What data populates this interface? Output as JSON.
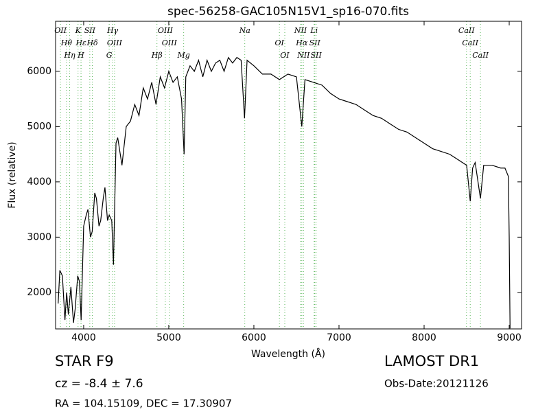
{
  "chart_data": {
    "type": "line",
    "title": "spec-56258-GAC105N15V1_sp16-070.fits",
    "x_label": "Wavelength (Å)",
    "y_label": "Flux (relative)",
    "xlim": [
      3670,
      9145
    ],
    "ylim": [
      1340,
      6905
    ],
    "xticks": [
      4000,
      5000,
      6000,
      7000,
      8000,
      9000
    ],
    "yticks": [
      2000,
      3000,
      4000,
      5000,
      6000
    ],
    "series": [
      {
        "name": "spectrum",
        "color": "#000000",
        "x": [
          3700,
          3720,
          3750,
          3780,
          3800,
          3820,
          3850,
          3880,
          3900,
          3930,
          3950,
          3970,
          4000,
          4030,
          4050,
          4080,
          4100,
          4130,
          4150,
          4180,
          4200,
          4230,
          4250,
          4280,
          4300,
          4330,
          4350,
          4380,
          4400,
          4450,
          4500,
          4550,
          4600,
          4650,
          4700,
          4750,
          4800,
          4850,
          4900,
          4950,
          5000,
          5050,
          5100,
          5150,
          5180,
          5200,
          5250,
          5300,
          5350,
          5400,
          5450,
          5500,
          5550,
          5600,
          5650,
          5700,
          5750,
          5800,
          5850,
          5890,
          5920,
          6000,
          6100,
          6200,
          6300,
          6400,
          6500,
          6563,
          6600,
          6700,
          6800,
          6900,
          7000,
          7100,
          7200,
          7300,
          7400,
          7500,
          7600,
          7700,
          7800,
          7900,
          8000,
          8100,
          8200,
          8300,
          8400,
          8500,
          8542,
          8570,
          8600,
          8662,
          8700,
          8800,
          8900,
          8950,
          8990,
          9000,
          9010
        ],
        "values": [
          1800,
          2400,
          2300,
          1500,
          2000,
          1600,
          2100,
          1450,
          1700,
          2300,
          2200,
          1500,
          3200,
          3400,
          3500,
          3000,
          3100,
          3800,
          3700,
          3200,
          3300,
          3700,
          3900,
          3300,
          3400,
          3300,
          2500,
          4700,
          4800,
          4300,
          5000,
          5100,
          5400,
          5200,
          5700,
          5500,
          5800,
          5400,
          5900,
          5700,
          6000,
          5800,
          5900,
          5500,
          4500,
          5900,
          6100,
          6000,
          6200,
          5900,
          6200,
          6000,
          6150,
          6200,
          6000,
          6250,
          6150,
          6250,
          6200,
          5150,
          6200,
          6100,
          5950,
          5950,
          5850,
          5950,
          5900,
          5000,
          5850,
          5800,
          5750,
          5600,
          5500,
          5450,
          5400,
          5300,
          5200,
          5150,
          5050,
          4950,
          4900,
          4800,
          4700,
          4600,
          4550,
          4500,
          4400,
          4300,
          3650,
          4250,
          4350,
          3700,
          4300,
          4300,
          4250,
          4250,
          4100,
          3000,
          1350
        ]
      }
    ],
    "lines": [
      {
        "label": "OII",
        "x": 3727
      },
      {
        "label": "Hθ",
        "x": 3798
      },
      {
        "label": "Hη",
        "x": 3835
      },
      {
        "label": "K",
        "x": 3934
      },
      {
        "label": "Hε",
        "x": 3970
      },
      {
        "label": "H",
        "x": 3968
      },
      {
        "label": "SII",
        "x": 4072
      },
      {
        "label": "Hδ",
        "x": 4102
      },
      {
        "label": "G",
        "x": 4300
      },
      {
        "label": "Hγ",
        "x": 4340
      },
      {
        "label": "OIII",
        "x": 4363
      },
      {
        "label": "Hβ",
        "x": 4861
      },
      {
        "label": "OIII",
        "x": 4959
      },
      {
        "label": "OIII",
        "x": 5007
      },
      {
        "label": "Mg",
        "x": 5175
      },
      {
        "label": "Na",
        "x": 5893
      },
      {
        "label": "OI",
        "x": 6300
      },
      {
        "label": "OI",
        "x": 6363
      },
      {
        "label": "NII",
        "x": 6548
      },
      {
        "label": "Hα",
        "x": 6563
      },
      {
        "label": "NII",
        "x": 6583
      },
      {
        "label": "Li",
        "x": 6708
      },
      {
        "label": "SII",
        "x": 6716
      },
      {
        "label": "SII",
        "x": 6731
      },
      {
        "label": "CaII",
        "x": 8498
      },
      {
        "label": "CaII",
        "x": 8542
      },
      {
        "label": "CaII",
        "x": 8662
      }
    ],
    "line_color": "#5cb85c",
    "annotations": [
      "STAR   F9",
      "LAMOST DR1",
      "cz = -8.4 ± 7.6",
      "Obs-Date:20121126",
      "RA = 104.15109, DEC = 17.30907"
    ]
  }
}
